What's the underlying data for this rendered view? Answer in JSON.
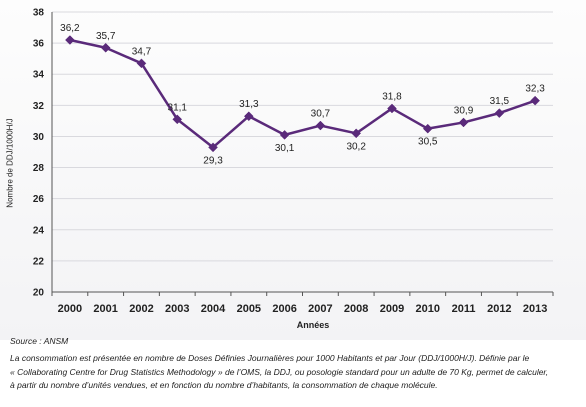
{
  "chart_data": {
    "type": "line",
    "x": [
      "2000",
      "2001",
      "2002",
      "2003",
      "2004",
      "2005",
      "2006",
      "2007",
      "2008",
      "2009",
      "2010",
      "2011",
      "2012",
      "2013"
    ],
    "series": [
      {
        "values": [
          36.2,
          35.7,
          34.7,
          31.1,
          29.3,
          31.3,
          30.1,
          30.7,
          30.2,
          31.8,
          30.5,
          30.9,
          31.5,
          32.3
        ]
      }
    ],
    "data_labels": [
      "36,2",
      "35,7",
      "34,7",
      "31,1",
      "29,3",
      "31,3",
      "30,1",
      "30,7",
      "30,2",
      "31,8",
      "30,5",
      "30,9",
      "31,5",
      "32,3"
    ],
    "y_ticks": [
      20,
      22,
      24,
      26,
      28,
      30,
      32,
      34,
      36,
      38
    ],
    "ylim": [
      20,
      38
    ],
    "xlabel": "Années",
    "ylabel": "Nombre de DDJ/1000H/J",
    "grid": true,
    "line_color": "#5a2a7a"
  },
  "source": "Source : ANSM",
  "note_lines": [
    "La consommation est présentée en nombre de Doses Définies Journalières pour 1000 Habitants et par Jour (DDJ/1000H/J). Définie par le",
    "« Collaborating Centre for Drug Statistics Methodology » de l’OMS, la DDJ, ou posologie standard pour un adulte de 70 Kg, permet de calculer,",
    "à partir du nombre d’unités vendues, et en fonction du nombre d’habitants, la consommation de chaque molécule."
  ]
}
